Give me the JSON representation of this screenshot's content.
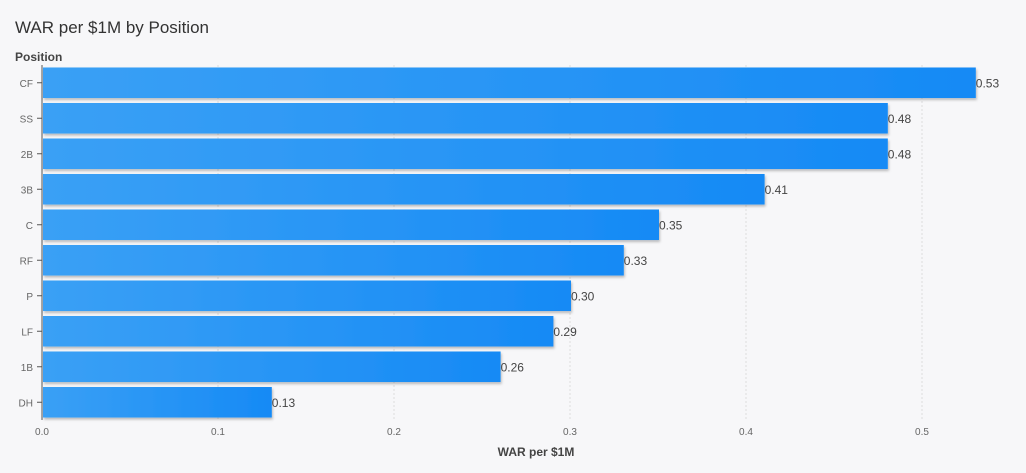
{
  "chart_data": {
    "type": "bar",
    "orientation": "horizontal",
    "title": "WAR per $1M by Position",
    "ylabel": "Position",
    "xlabel": "WAR per $1M",
    "categories": [
      "CF",
      "SS",
      "2B",
      "3B",
      "C",
      "RF",
      "P",
      "LF",
      "1B",
      "DH"
    ],
    "values": [
      0.53,
      0.48,
      0.48,
      0.41,
      0.35,
      0.33,
      0.3,
      0.29,
      0.26,
      0.13
    ],
    "value_labels": [
      "0.53",
      "0.48",
      "0.48",
      "0.41",
      "0.35",
      "0.33",
      "0.30",
      "0.29",
      "0.26",
      "0.13"
    ],
    "xticks": [
      0.0,
      0.1,
      0.2,
      0.3,
      0.4,
      0.5
    ],
    "xtick_labels": [
      "0.0",
      "0.1",
      "0.2",
      "0.3",
      "0.4",
      "0.5"
    ],
    "xlim": [
      0,
      0.55
    ],
    "grid": true,
    "colors": {
      "bar_light": "#3aa0f5",
      "bar_dark": "#1a8cf5",
      "grid": "#dddddd"
    }
  }
}
